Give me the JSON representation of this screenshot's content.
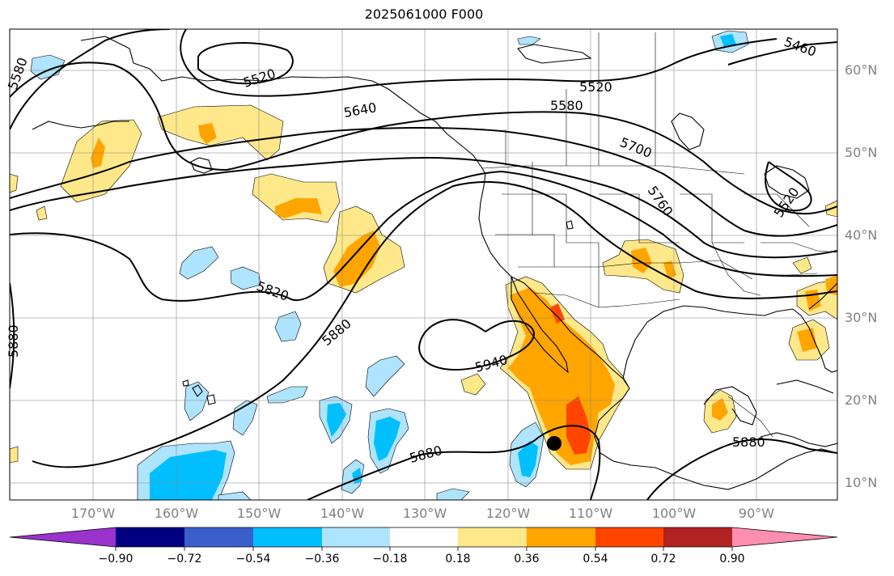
{
  "title": "2025061000 F000",
  "lat_labels": [
    "60°N",
    "50°N",
    "40°N",
    "30°N",
    "20°N",
    "10°N"
  ],
  "lon_labels": [
    "170°W",
    "160°W",
    "150°W",
    "140°W",
    "130°W",
    "120°W",
    "110°W",
    "100°W",
    "90°W"
  ],
  "contour_labels": [
    "5460",
    "5520",
    "5520",
    "5520",
    "5580",
    "5580",
    "5640",
    "5700",
    "5760",
    "5820",
    "5880",
    "5880",
    "5880",
    "5880",
    "5940"
  ],
  "colorbar": {
    "tick_labels": [
      "−0.90",
      "−0.72",
      "−0.54",
      "−0.36",
      "−0.18",
      "0.18",
      "0.36",
      "0.54",
      "0.72",
      "0.90"
    ],
    "colors": [
      "#9933cc",
      "#000080",
      "#3a5fcd",
      "#00bfff",
      "#aee4ff",
      "#ffffff",
      "#ffe88a",
      "#ffa500",
      "#ff4500",
      "#b22222",
      "#ff8fb0"
    ]
  },
  "map": {
    "lon_range": [
      -180,
      -80
    ],
    "lat_range": [
      7,
      64
    ],
    "fill_colors": {
      "light_yellow": "#ffe88a",
      "orange": "#ffa500",
      "red_orange": "#ff4500",
      "light_blue": "#aee4ff",
      "deep_sky_blue": "#00bfff"
    },
    "marker": {
      "name": "storm-center",
      "lon": -113.5,
      "lat": 15
    }
  }
}
